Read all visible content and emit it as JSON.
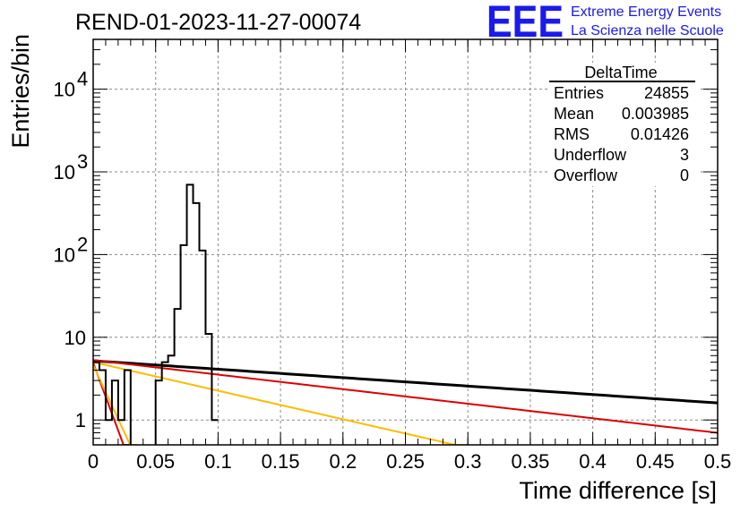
{
  "chart_data": {
    "type": "line",
    "title": "REND-01-2023-11-27-00074",
    "xlabel": "Time difference [s]",
    "ylabel": "Entries/bin",
    "xlim": [
      0,
      0.5
    ],
    "ylim": [
      0.5,
      40000
    ],
    "y_scale": "log",
    "grid": true,
    "x_ticks": [
      {
        "v": 0,
        "label": "0"
      },
      {
        "v": 0.05,
        "label": "0.05"
      },
      {
        "v": 0.1,
        "label": "0.1"
      },
      {
        "v": 0.15,
        "label": "0.15"
      },
      {
        "v": 0.2,
        "label": "0.2"
      },
      {
        "v": 0.25,
        "label": "0.25"
      },
      {
        "v": 0.3,
        "label": "0.3"
      },
      {
        "v": 0.35,
        "label": "0.35"
      },
      {
        "v": 0.4,
        "label": "0.4"
      },
      {
        "v": 0.45,
        "label": "0.45"
      },
      {
        "v": 0.5,
        "label": "0.5"
      }
    ],
    "y_ticks": [
      {
        "v": 1,
        "label": "1",
        "exp": ""
      },
      {
        "v": 10,
        "label": "10",
        "exp": ""
      },
      {
        "v": 100,
        "label": "10",
        "exp": "2"
      },
      {
        "v": 1000,
        "label": "10",
        "exp": "3"
      },
      {
        "v": 10000,
        "label": "10",
        "exp": "4"
      }
    ],
    "histogram": {
      "name": "DeltaTime",
      "color": "#000000",
      "bin_width": 0.005,
      "x_start": 0,
      "counts": [
        5,
        4,
        1,
        3,
        1,
        4,
        0,
        0,
        0,
        0,
        3,
        5,
        6,
        22,
        130,
        700,
        420,
        112,
        11,
        1
      ]
    },
    "fits": [
      {
        "color": "#000000",
        "amplitude": 5.2,
        "slope": -2.35,
        "x_range": [
          0,
          0.5
        ],
        "width": 3
      },
      {
        "color": "#dd0000",
        "amplitude": 5.3,
        "slope": -4.05,
        "x_range": [
          0,
          0.5
        ],
        "width": 2
      },
      {
        "color": "#ffbb00",
        "amplitude": 5.0,
        "slope": -7.95,
        "x_range": [
          0,
          0.3
        ],
        "width": 2
      },
      {
        "color": "#dd0000",
        "amplitude": 4.9,
        "slope": -94,
        "x_range": [
          0,
          0.03
        ],
        "width": 2
      },
      {
        "color": "#ffbb00",
        "amplitude": 4.6,
        "slope": -75,
        "x_range": [
          0,
          0.035
        ],
        "width": 2
      }
    ],
    "stats_box": {
      "title": "DeltaTime",
      "rows": [
        {
          "label": "Entries",
          "value": "24855"
        },
        {
          "label": "Mean",
          "value": "0.003985"
        },
        {
          "label": "RMS",
          "value": "0.01426"
        },
        {
          "label": "Underflow",
          "value": "3"
        },
        {
          "label": "Overflow",
          "value": "0"
        }
      ]
    }
  },
  "logo": {
    "letters": "EEE",
    "line1": "Extreme Energy Events",
    "line2": "La Scienza nelle Scuole"
  }
}
